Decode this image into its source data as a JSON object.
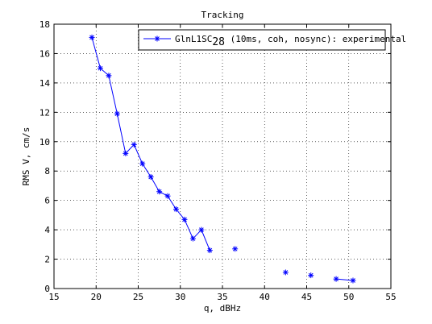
{
  "chart_data": {
    "type": "line",
    "title": "Tracking",
    "xlabel": "q, dBHz",
    "ylabel": "RMS V, cm/s",
    "xlim": [
      15,
      55
    ],
    "ylim": [
      0,
      18
    ],
    "xticks": [
      15,
      20,
      25,
      30,
      35,
      40,
      45,
      50,
      55
    ],
    "yticks": [
      0,
      2,
      4,
      6,
      8,
      10,
      12,
      14,
      16,
      18
    ],
    "grid": true,
    "legend_position": "top-right",
    "line_color": "#0000ff",
    "marker": "asterisk",
    "legend": {
      "label_main": "GlnL1SC",
      "label_sub": "28",
      "label_rest": " (10ms, coh, nosync): experimental"
    },
    "series": [
      {
        "name": "GlnL1SC28 (10ms, coh, nosync): experimental",
        "segments": [
          {
            "x": [
              19.5,
              20.5,
              21.5,
              22.5,
              23.5,
              24.5,
              25.5,
              26.5,
              27.5,
              28.5,
              29.5,
              30.5,
              31.5,
              32.5,
              33.5
            ],
            "y": [
              17.1,
              15.0,
              14.5,
              11.9,
              9.2,
              9.8,
              8.5,
              7.6,
              6.6,
              6.3,
              5.4,
              4.7,
              3.4,
              4.0,
              2.6
            ]
          },
          {
            "x": [
              36.5
            ],
            "y": [
              2.7
            ]
          },
          {
            "x": [
              42.5
            ],
            "y": [
              1.1
            ]
          },
          {
            "x": [
              45.5
            ],
            "y": [
              0.9
            ]
          },
          {
            "x": [
              48.5,
              50.5
            ],
            "y": [
              0.65,
              0.55
            ]
          }
        ]
      }
    ]
  }
}
